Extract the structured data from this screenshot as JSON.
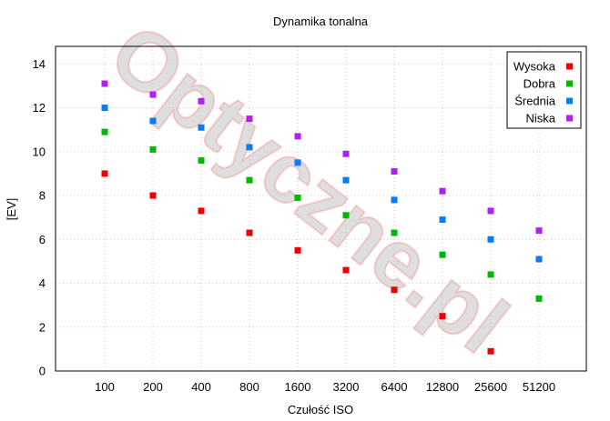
{
  "watermark": "Optyczne.pl",
  "chart_data": {
    "type": "scatter",
    "title": "Dynamika tonalna",
    "xlabel": "Czułość ISO",
    "ylabel": "[EV]",
    "categories": [
      "100",
      "200",
      "400",
      "800",
      "1600",
      "3200",
      "6400",
      "12800",
      "25600",
      "51200"
    ],
    "yticks": [
      "0",
      "2",
      "4",
      "6",
      "8",
      "10",
      "12",
      "14"
    ],
    "ylim": [
      0,
      14.8
    ],
    "grid": true,
    "legend_position": "top-right",
    "series": [
      {
        "name": "Wysoka",
        "color": "#ee0000",
        "values": [
          9.0,
          8.0,
          7.3,
          6.3,
          5.5,
          4.6,
          3.7,
          2.5,
          0.9,
          null
        ]
      },
      {
        "name": "Dobra",
        "color": "#00b800",
        "values": [
          10.9,
          10.1,
          9.6,
          8.7,
          7.9,
          7.1,
          6.3,
          5.3,
          4.4,
          3.3
        ]
      },
      {
        "name": "Średnia",
        "color": "#0a7bf0",
        "values": [
          12.0,
          11.4,
          11.1,
          10.2,
          9.5,
          8.7,
          7.8,
          6.9,
          6.0,
          5.1
        ]
      },
      {
        "name": "Niska",
        "color": "#b020f0",
        "values": [
          13.1,
          12.6,
          12.3,
          11.5,
          10.7,
          9.9,
          9.1,
          8.2,
          7.3,
          6.4
        ]
      }
    ]
  }
}
